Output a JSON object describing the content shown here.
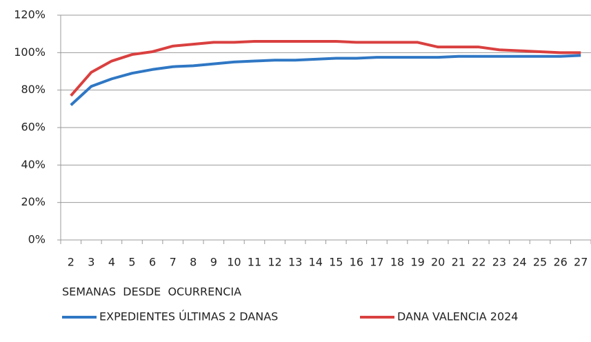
{
  "chart_data": {
    "type": "line",
    "xlabel": "SEMANAS  DESDE  OCURRENCIA",
    "categories": [
      "2",
      "3",
      "4",
      "5",
      "6",
      "7",
      "8",
      "9",
      "10",
      "11",
      "12",
      "13",
      "14",
      "15",
      "16",
      "17",
      "18",
      "19",
      "20",
      "21",
      "22",
      "23",
      "24",
      "25",
      "26",
      "27"
    ],
    "series": [
      {
        "name": "EXPEDIENTES ÚLTIMAS 2 DANAS",
        "color": "#2f77c4",
        "values": [
          72,
          82,
          86,
          89,
          91,
          92.5,
          93,
          94,
          95,
          95.5,
          96,
          96,
          96.5,
          97,
          97,
          97.5,
          97.5,
          97.5,
          97.5,
          98,
          98,
          98,
          98,
          98,
          98,
          98.5
        ]
      },
      {
        "name": "DANA VALENCIA 2024",
        "color": "#d9403f",
        "values": [
          77,
          89.5,
          95.5,
          99,
          100.5,
          103.5,
          104.5,
          105.5,
          105.5,
          106,
          106,
          106,
          106,
          106,
          105.5,
          105.5,
          105.5,
          105.5,
          103,
          103,
          103,
          101.5,
          101,
          100.5,
          100,
          100
        ]
      }
    ],
    "ylim": [
      0,
      120
    ],
    "yticks": [
      {
        "value": 0,
        "label": "0%"
      },
      {
        "value": 20,
        "label": "20%"
      },
      {
        "value": 40,
        "label": "40%"
      },
      {
        "value": 60,
        "label": "60%"
      },
      {
        "value": 80,
        "label": "80%"
      },
      {
        "value": 100,
        "label": "100%"
      },
      {
        "value": 120,
        "label": "120%"
      }
    ],
    "grid": true,
    "legend": "bottom"
  }
}
